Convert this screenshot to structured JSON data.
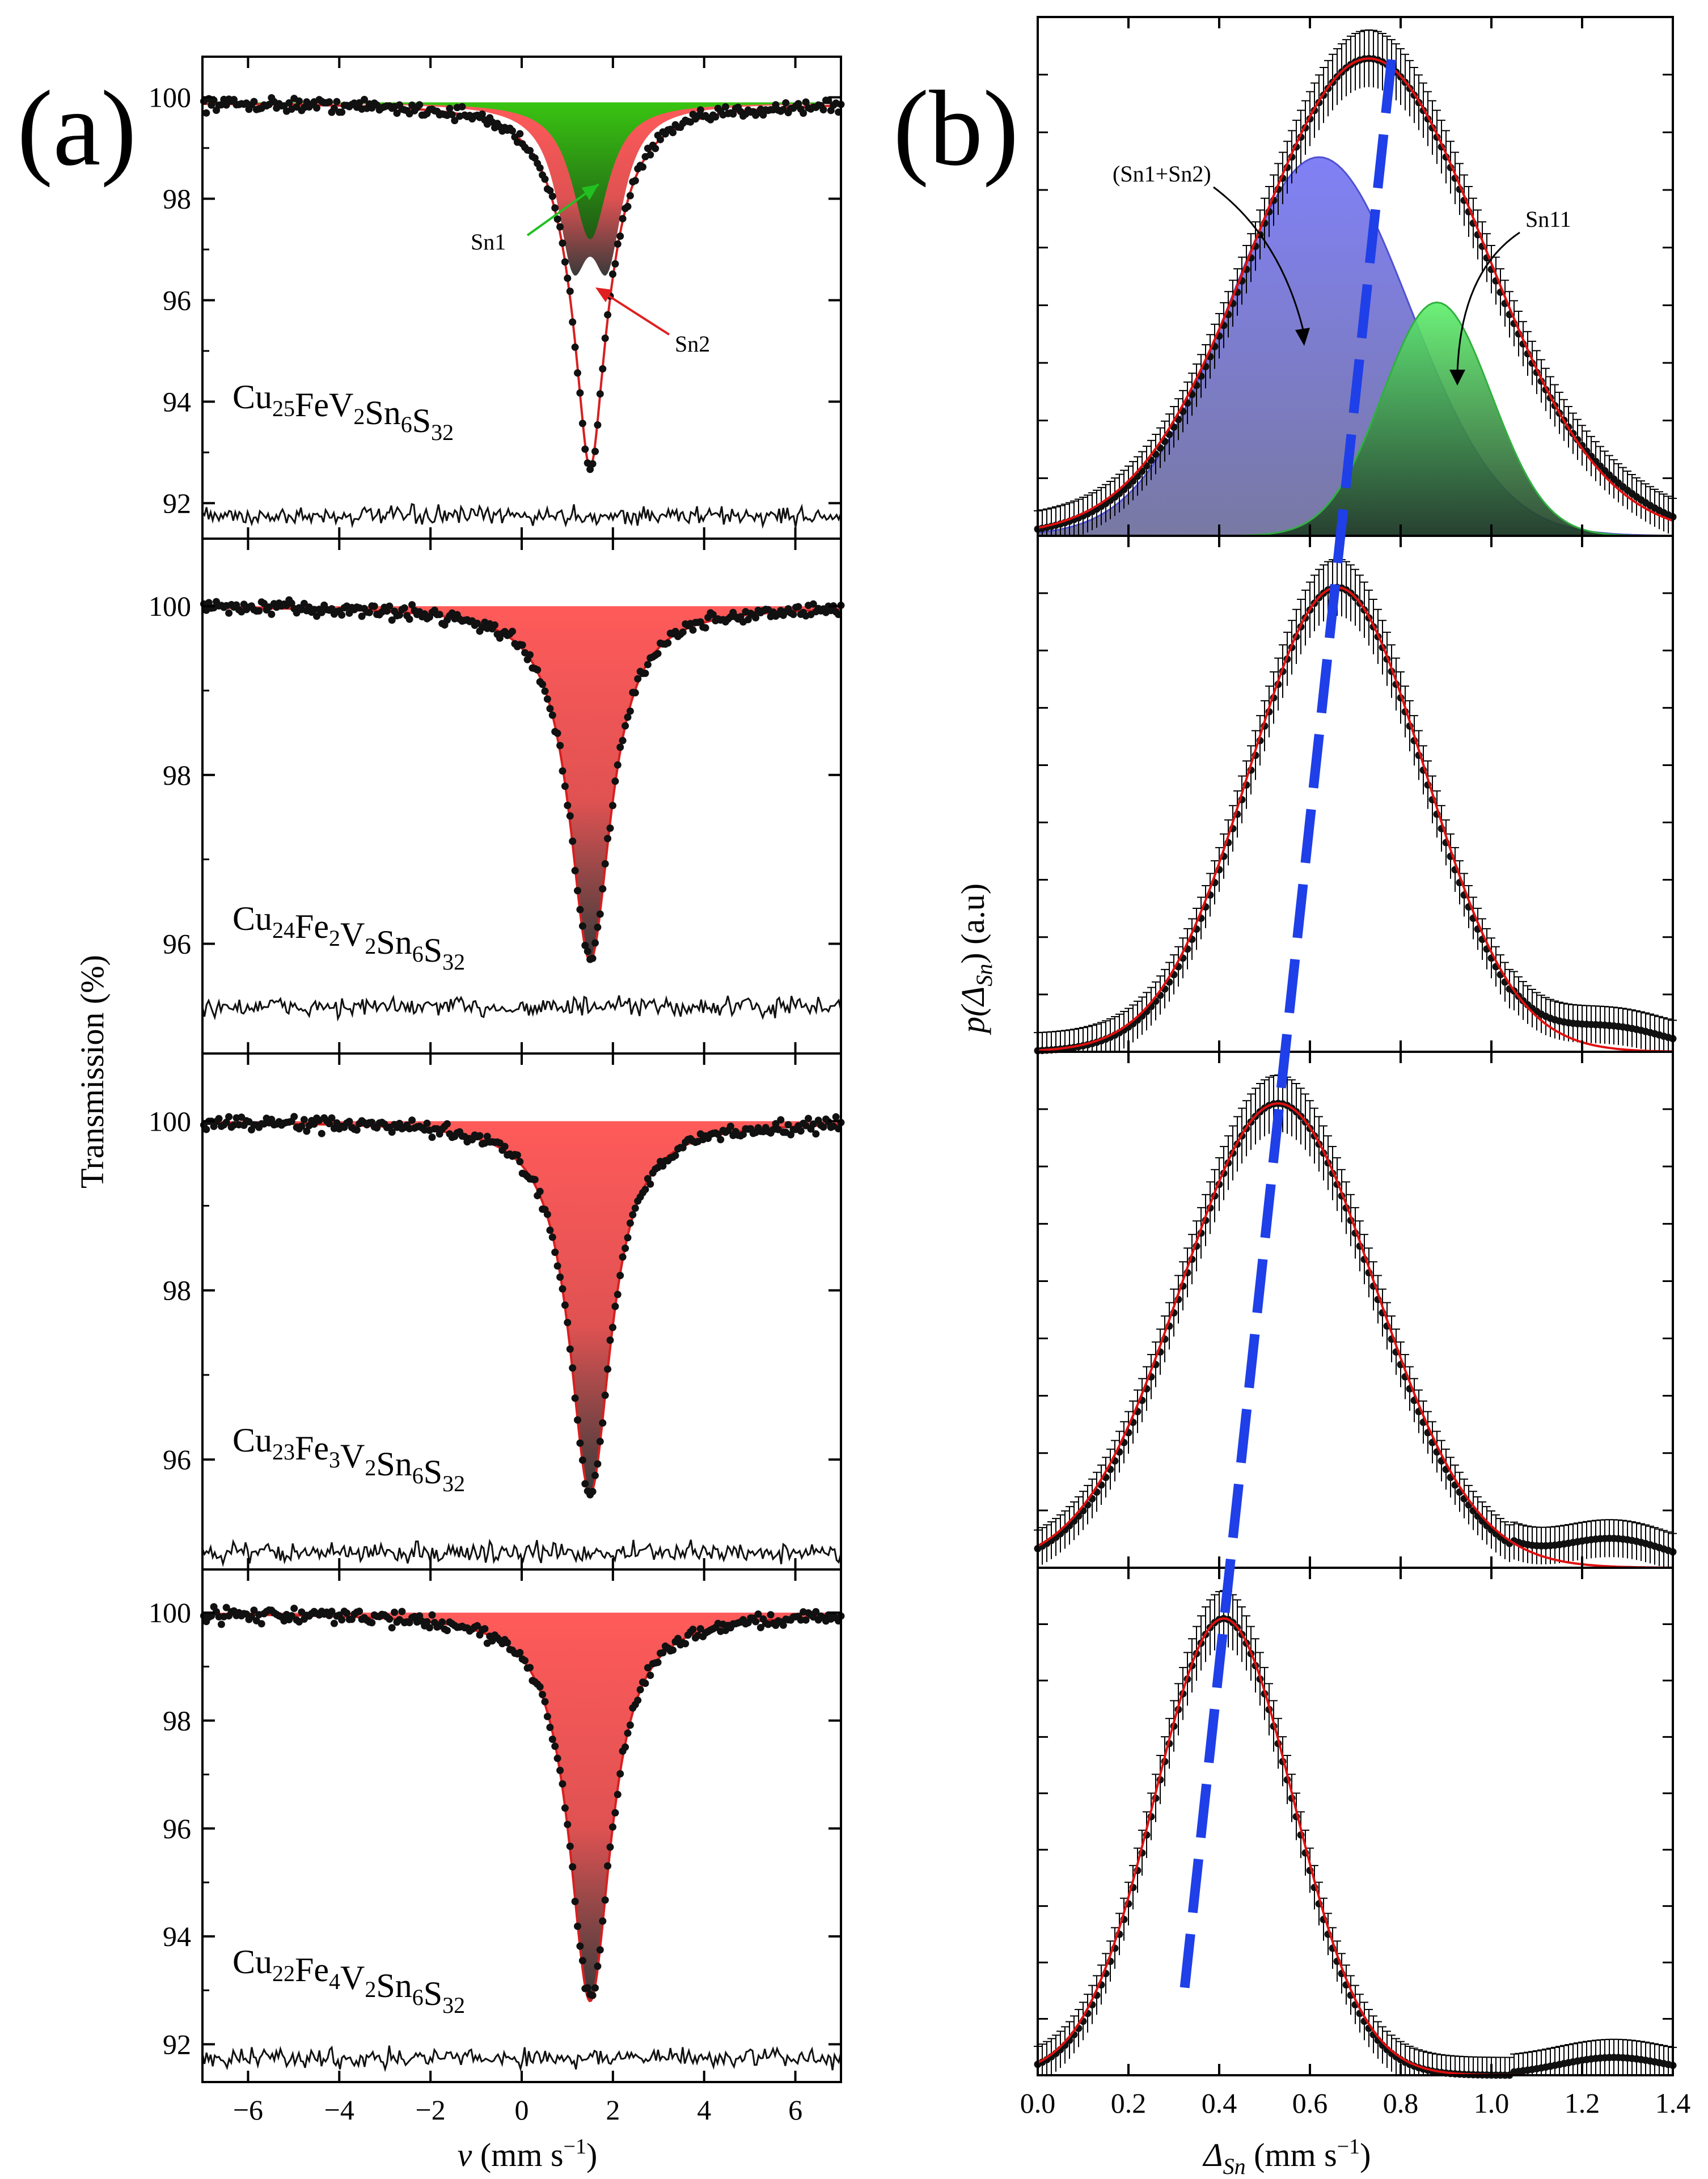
{
  "chart_data": [
    {
      "type": "line",
      "panel_label": "(a)",
      "xlabel_var": "v",
      "xlabel_unit": "(mm s",
      "xlabel_exp": "−1",
      "xlabel_close": ")",
      "ylabel": "Transmission (%)",
      "xlim": [
        -7,
        7
      ],
      "x_ticks": [
        "−6",
        "−4",
        "−2",
        "0",
        "2",
        "4",
        "6"
      ],
      "x_tick_values": [
        -6,
        -4,
        -2,
        0,
        2,
        4,
        6
      ],
      "series": [
        {
          "name": "Cu25FeV2Sn6S32",
          "formula": [
            [
              "Cu",
              "25"
            ],
            [
              "Fe",
              ""
            ],
            [
              "V",
              "2"
            ],
            [
              "Sn",
              "6"
            ],
            [
              "S",
              "32"
            ]
          ],
          "ylim": [
            91.3,
            100.8
          ],
          "y_ticks": [
            "92",
            "94",
            "96",
            "98",
            "100"
          ],
          "y_tick_values": [
            92,
            94,
            96,
            98,
            100
          ],
          "baseline": 99.9,
          "min_transmission": 92.7,
          "center_velocity": 1.5,
          "residual_level": 91.75,
          "components": [
            {
              "name": "Sn1",
              "color": "#2fbf10",
              "type": "singlet",
              "center": 1.5,
              "depth": 2.7
            },
            {
              "name": "Sn2",
              "color": "#f24b4b",
              "type": "doublet",
              "center": 1.5,
              "splitting": 0.75,
              "depth": 4.7
            }
          ],
          "annotations": [
            "Sn1",
            "Sn2"
          ]
        },
        {
          "name": "Cu24Fe2V2Sn6S32",
          "formula": [
            [
              "Cu",
              "24"
            ],
            [
              "Fe",
              "2"
            ],
            [
              "V",
              "2"
            ],
            [
              "Sn",
              "6"
            ],
            [
              "S",
              "32"
            ]
          ],
          "ylim": [
            94.7,
            100.8
          ],
          "y_ticks": [
            "96",
            "98",
            "100"
          ],
          "y_tick_values": [
            96,
            98,
            100
          ],
          "baseline": 100.0,
          "min_transmission": 95.8,
          "center_velocity": 1.5,
          "residual_level": 95.25,
          "components": [
            {
              "name": "Sn",
              "color": "#f24b4b",
              "type": "singlet",
              "center": 1.5,
              "depth": 4.2
            }
          ]
        },
        {
          "name": "Cu23Fe3V2Sn6S32",
          "formula": [
            [
              "Cu",
              "23"
            ],
            [
              "Fe",
              "3"
            ],
            [
              "V",
              "2"
            ],
            [
              "Sn",
              "6"
            ],
            [
              "S",
              "32"
            ]
          ],
          "ylim": [
            94.7,
            100.8
          ],
          "y_ticks": [
            "96",
            "98",
            "100"
          ],
          "y_tick_values": [
            96,
            98,
            100
          ],
          "baseline": 100.0,
          "min_transmission": 95.6,
          "center_velocity": 1.5,
          "residual_level": 94.9,
          "components": [
            {
              "name": "Sn",
              "color": "#f24b4b",
              "type": "singlet",
              "center": 1.5,
              "depth": 4.4
            }
          ]
        },
        {
          "name": "Cu22Fe4V2Sn6S32",
          "formula": [
            [
              "Cu",
              "22"
            ],
            [
              "Fe",
              "4"
            ],
            [
              "V",
              "2"
            ],
            [
              "Sn",
              "6"
            ],
            [
              "S",
              "32"
            ]
          ],
          "ylim": [
            91.3,
            100.8
          ],
          "y_ticks": [
            "92",
            "94",
            "96",
            "98",
            "100"
          ],
          "y_tick_values": [
            92,
            94,
            96,
            98,
            100
          ],
          "baseline": 100.0,
          "min_transmission": 92.8,
          "center_velocity": 1.5,
          "residual_level": 91.75,
          "components": [
            {
              "name": "Sn",
              "color": "#f24b4b",
              "type": "singlet",
              "center": 1.5,
              "depth": 7.2
            }
          ]
        }
      ]
    },
    {
      "type": "line",
      "panel_label": "(b)",
      "xlabel_var": "Δ",
      "xlabel_sub": "Sn",
      "xlabel_unit": "(mm s",
      "xlabel_exp": "−1",
      "xlabel_close": ")",
      "ylabel_var": "p(Δ",
      "ylabel_sub": "Sn",
      "ylabel_close": ")",
      "ylabel_unit": "(a.u)",
      "xlim": [
        0.0,
        1.4
      ],
      "x_ticks": [
        "0.0",
        "0.2",
        "0.4",
        "0.6",
        "0.8",
        "1.0",
        "1.2",
        "1.4"
      ],
      "x_tick_values": [
        0.0,
        0.2,
        0.4,
        0.6,
        0.8,
        1.0,
        1.2,
        1.4
      ],
      "series": [
        {
          "name": "Cu25FeV2Sn6S32",
          "peak_position": 0.73,
          "peak_height": 0.92,
          "width": 0.25,
          "tail_bump": 0.02,
          "components": [
            {
              "name": "(Sn1+Sn2)",
              "color": "#6b6bf0",
              "center": 0.62,
              "height": 0.73,
              "width": 0.2
            },
            {
              "name": "Sn11",
              "color": "#4fe060",
              "center": 0.88,
              "height": 0.45,
              "width": 0.12
            }
          ],
          "annotations": [
            "(Sn1+Sn2)",
            "Sn11"
          ]
        },
        {
          "name": "Cu24Fe2V2Sn6S32",
          "peak_position": 0.66,
          "peak_height": 0.9,
          "width": 0.19,
          "tail_bump": 0.045
        },
        {
          "name": "Cu23Fe3V2Sn6S32",
          "peak_position": 0.53,
          "peak_height": 0.9,
          "width": 0.21,
          "tail_bump": 0.055
        },
        {
          "name": "Cu22Fe4V2Sn6S32",
          "peak_position": 0.41,
          "peak_height": 0.9,
          "width": 0.15,
          "tail_bump": 0.035
        }
      ],
      "trend_line": {
        "color": "#1f3fe8",
        "x_start": 0.78,
        "x_end": 0.32,
        "style": "dashed"
      }
    }
  ]
}
